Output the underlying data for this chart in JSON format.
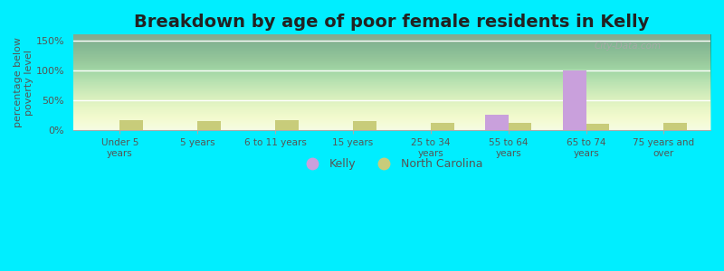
{
  "title": "Breakdown by age of poor female residents in Kelly",
  "categories": [
    "Under 5\nyears",
    "5 years",
    "6 to 11 years",
    "15 years",
    "25 to 34\nyears",
    "55 to 64\nyears",
    "65 to 74\nyears",
    "75 years and\nover"
  ],
  "kelly_values": [
    0,
    0,
    0,
    0,
    0,
    26,
    100,
    0
  ],
  "nc_values": [
    17,
    16,
    17,
    16,
    13,
    12,
    11,
    13
  ],
  "kelly_color": "#c9a0dc",
  "nc_color": "#c8cc7a",
  "title_fontsize": 14,
  "ylabel": "percentage below\npoverty level",
  "ylim": [
    0,
    160
  ],
  "yticks": [
    0,
    50,
    100,
    150
  ],
  "ytick_labels": [
    "0%",
    "50%",
    "100%",
    "150%"
  ],
  "bg_color_top": "#c8dba8",
  "bg_color_bottom": "#f0fae0",
  "fig_bg_color": "#00eeff",
  "watermark": "City-Data.com",
  "bar_width": 0.3,
  "text_color": "#555555"
}
